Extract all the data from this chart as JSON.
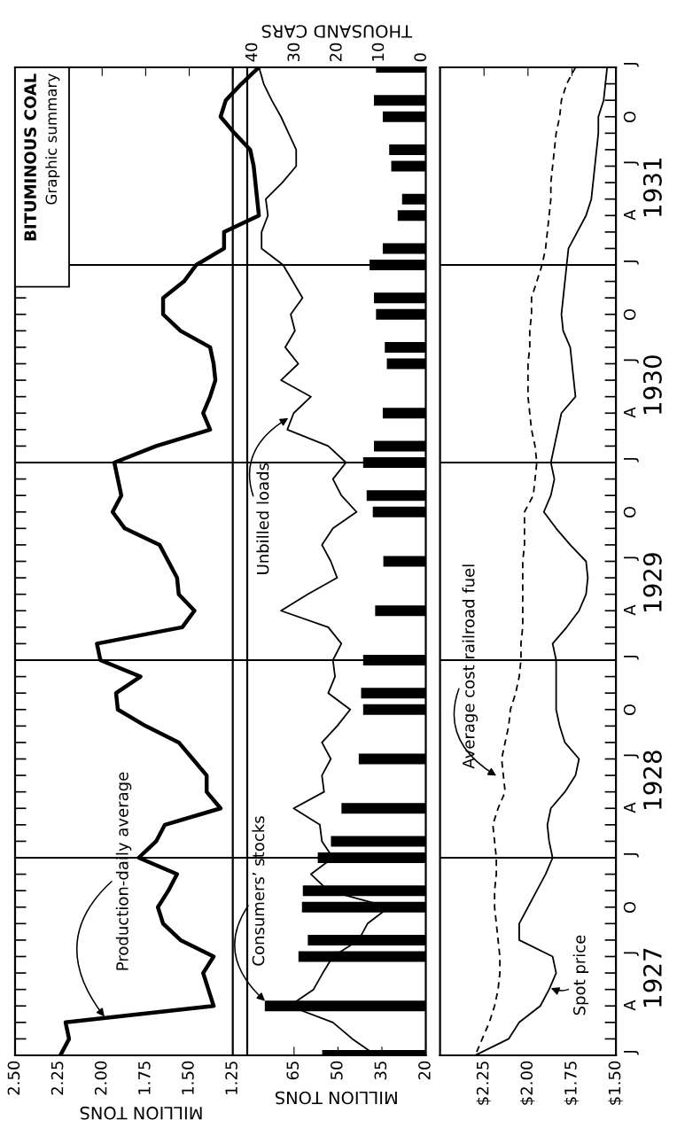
{
  "chart_data": [
    {
      "type": "line",
      "orientation": "horizontal",
      "title": "BITUMINOUS COAL",
      "subtitle": "Graphic summary",
      "xlabel": "MILLION TONS",
      "tick_labels": "x",
      "grid": "y",
      "xlim": [
        2.5,
        1.05
      ],
      "xticks": [
        {
          "value": 2.5,
          "label": "2.50"
        },
        2.25,
        {
          "value": 2.0,
          "label": "2.00"
        },
        1.75,
        {
          "value": 1.5,
          "label": "1.50"
        },
        1.25
      ],
      "categories": [
        null,
        null,
        null,
        null,
        null,
        null,
        null,
        null,
        null,
        null,
        null,
        null,
        null,
        null,
        null,
        null,
        null,
        null,
        null,
        null,
        null,
        null,
        null,
        null,
        null,
        null,
        null,
        null,
        null,
        null,
        null,
        null,
        null,
        null,
        null,
        null,
        null,
        null,
        null,
        null,
        null,
        null,
        null,
        null,
        null,
        null,
        null,
        null,
        null,
        null,
        null,
        null,
        null,
        null,
        null,
        null,
        null,
        null,
        null,
        null,
        null
      ],
      "series": [
        {
          "name": "Production-daily average",
          "color": "#000000",
          "values": [
            1.1,
            1.2,
            1.29,
            1.32,
            1.24,
            1.15,
            1.13,
            1.12,
            1.11,
            1.1,
            1.3,
            1.3,
            1.46,
            1.53,
            1.65,
            1.65,
            1.55,
            1.38,
            1.36,
            1.35,
            1.38,
            1.42,
            1.38,
            1.69,
            1.93,
            1.91,
            1.89,
            1.94,
            1.87,
            1.67,
            1.62,
            1.57,
            1.56,
            1.47,
            1.54,
            2.03,
            2.01,
            1.78,
            1.92,
            1.91,
            1.75,
            1.56,
            1.48,
            1.4,
            1.4,
            1.32,
            1.64,
            1.69,
            1.79,
            1.57,
            1.62,
            1.68,
            1.65,
            1.55,
            1.36,
            1.42,
            1.39,
            1.36,
            2.21,
            2.19,
            2.24
          ]
        }
      ],
      "ref_lines": [
        {
          "axis": "x",
          "value": 1.25
        }
      ]
    },
    {
      "type": "bar",
      "orientation": "horizontal",
      "xlabel": "MILLION TONS",
      "x2label": "THOUSAND CARS",
      "tick_labels": "x",
      "grid": "y",
      "xlim": [
        81,
        20
      ],
      "xticks": [
        65,
        50,
        35,
        20
      ],
      "x2lim": [
        41.3,
        -1.0
      ],
      "x2ticks": [
        40,
        30,
        20,
        10,
        0
      ],
      "categories": [
        null,
        null,
        null,
        null,
        null,
        null,
        null,
        null,
        null,
        null,
        null,
        null,
        null,
        null,
        null,
        null,
        null,
        null,
        null,
        null,
        null,
        null,
        null,
        null,
        null,
        null,
        null,
        null,
        null,
        null,
        null,
        null,
        null,
        null,
        null,
        null,
        null,
        null,
        null,
        null,
        null,
        null,
        null,
        null,
        null,
        null,
        null,
        null,
        null,
        null,
        null,
        null,
        null,
        null,
        null,
        null,
        null,
        null,
        null,
        null,
        null
      ],
      "series": [
        {
          "name": "Consumers’ stocks",
          "color": "#000000",
          "values": [
            37.0,
            null,
            37.7,
            34.7,
            null,
            32.5,
            31.8,
            null,
            28.1,
            29.6,
            null,
            34.7,
            39.2,
            null,
            37.7,
            37.0,
            null,
            34.0,
            33.3,
            null,
            null,
            34.7,
            null,
            37.7,
            41.4,
            null,
            40.2,
            38.1,
            null,
            null,
            34.5,
            null,
            null,
            37.3,
            null,
            null,
            41.4,
            null,
            42.1,
            41.4,
            null,
            null,
            42.9,
            null,
            null,
            48.8,
            null,
            52.4,
            56.9,
            null,
            62.0,
            62.3,
            null,
            60.3,
            63.5,
            null,
            null,
            75.0,
            null,
            null,
            55.4
          ]
        },
        {
          "name": "Unbilled loads",
          "type": "line",
          "axis": "x2",
          "color": "#000000",
          "values": [
            38.5,
            37.4,
            35.5,
            33.3,
            31.5,
            29.7,
            29.7,
            33.0,
            36.9,
            36.4,
            37.9,
            37.9,
            32.8,
            30.5,
            28.2,
            31.0,
            30.0,
            32.3,
            29.2,
            33.3,
            26.2,
            30.3,
            31.8,
            22.1,
            17.9,
            21.0,
            19.0,
            15.4,
            21.0,
            23.6,
            21.5,
            20.0,
            27.0,
            33.3,
            22.1,
            19.0,
            21.0,
            20.5,
            22.1,
            16.9,
            20.0,
            23.6,
            21.5,
            23.6,
            23.1,
            30.3,
            24.1,
            23.6,
            21.0,
            26.2,
            22.1,
            7.7,
            12.8,
            14.9,
            21.0,
            23.4,
            25.6,
            31.3,
            21.0,
            16.4,
            10.8
          ]
        }
      ]
    },
    {
      "type": "line",
      "orientation": "horizontal",
      "grid": "y",
      "xlim": [
        2.5,
        1.5
      ],
      "xticks": [
        {
          "value": 2.25,
          "label": "$2.25"
        },
        {
          "value": 2.0,
          "label": "$2.00"
        },
        {
          "value": 1.75,
          "label": "$1.75"
        },
        {
          "value": 1.5,
          "label": "$1.50"
        }
      ],
      "categories": [
        "J",
        null,
        null,
        "O",
        null,
        null,
        "J",
        null,
        null,
        "A",
        null,
        null,
        "J",
        null,
        null,
        "O",
        null,
        null,
        "J",
        null,
        null,
        "A",
        null,
        null,
        "J",
        null,
        null,
        "O",
        null,
        null,
        "J",
        null,
        null,
        "A",
        null,
        null,
        "J",
        null,
        null,
        "O",
        null,
        null,
        "J",
        null,
        null,
        "A",
        null,
        null,
        "J",
        null,
        null,
        "O",
        null,
        null,
        "J",
        null,
        null,
        "A",
        null,
        null,
        "J"
      ],
      "annotations": [
        "1931",
        "1930",
        "1929",
        "1928",
        "1927"
      ],
      "series": [
        {
          "name": "Average cost railroad fuel",
          "color": "#000000",
          "line_style": "dashed",
          "values": [
            1.73,
            1.78,
            1.81,
            1.82,
            1.84,
            1.85,
            1.86,
            1.87,
            1.87,
            1.88,
            1.89,
            1.9,
            1.92,
            1.95,
            1.98,
            1.98,
            1.99,
            1.99,
            2.0,
            2.0,
            2.0,
            1.99,
            1.98,
            1.96,
            1.95,
            1.96,
            1.97,
            2.02,
            2.02,
            2.02,
            2.03,
            2.03,
            2.03,
            2.03,
            2.03,
            2.04,
            2.04,
            2.05,
            2.07,
            2.1,
            2.11,
            2.13,
            2.15,
            2.14,
            2.13,
            2.17,
            2.2,
            2.19,
            2.18,
            2.18,
            2.19,
            2.19,
            2.18,
            2.17,
            2.16,
            2.16,
            2.17,
            2.19,
            2.22,
            2.26,
            2.3
          ]
        },
        {
          "name": "Spot price",
          "color": "#000000",
          "values": [
            1.55,
            1.56,
            1.57,
            1.6,
            1.6,
            1.61,
            1.62,
            1.63,
            1.64,
            1.67,
            1.72,
            1.77,
            1.78,
            1.79,
            1.8,
            1.81,
            1.8,
            1.76,
            1.75,
            1.74,
            1.73,
            1.81,
            1.83,
            1.85,
            1.87,
            1.85,
            1.87,
            1.91,
            1.84,
            1.76,
            1.67,
            1.66,
            1.67,
            1.71,
            1.78,
            1.86,
            1.84,
            1.84,
            1.84,
            1.84,
            1.82,
            1.79,
            1.71,
            1.73,
            1.79,
            1.87,
            1.89,
            1.88,
            1.86,
            1.9,
            1.95,
            2.0,
            2.05,
            2.05,
            1.86,
            1.84,
            1.88,
            1.93,
            2.05,
            2.11,
            2.3
          ]
        }
      ]
    }
  ]
}
